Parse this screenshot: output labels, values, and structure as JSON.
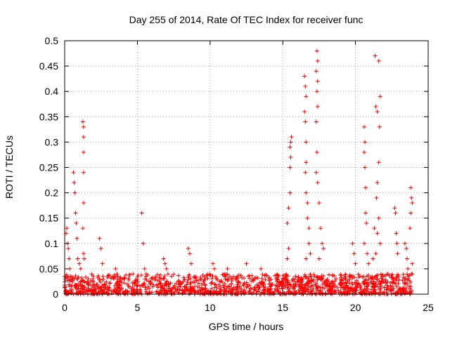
{
  "chart_data": {
    "type": "scatter",
    "title": "Day 255 of 2014, Rate Of TEC Index for receiver func",
    "xlabel": "GPS time / hours",
    "ylabel": "ROTI / TECUs",
    "xlim": [
      0,
      25
    ],
    "ylim": [
      0,
      0.5
    ],
    "xticks": [
      "0",
      "5",
      "10",
      "15",
      "20",
      "25"
    ],
    "yticks": [
      "0",
      "0.05",
      "0.1",
      "0.15",
      "0.2",
      "0.25",
      "0.3",
      "0.35",
      "0.4",
      "0.45",
      "0.5"
    ],
    "grid": true,
    "marker": "plus",
    "series_color": "#ff0000",
    "series": [
      {
        "name": "ROTI",
        "points": [
          [
            0.1,
            0.12
          ],
          [
            0.15,
            0.13
          ],
          [
            0.2,
            0.1
          ],
          [
            0.25,
            0.09
          ],
          [
            0.3,
            0.07
          ],
          [
            0.35,
            0.05
          ],
          [
            0.6,
            0.24
          ],
          [
            0.65,
            0.22
          ],
          [
            0.7,
            0.2
          ],
          [
            0.75,
            0.16
          ],
          [
            0.8,
            0.14
          ],
          [
            0.85,
            0.11
          ],
          [
            0.9,
            0.07
          ],
          [
            1.0,
            0.06
          ],
          [
            1.1,
            0.05
          ],
          [
            1.25,
            0.34
          ],
          [
            1.3,
            0.33
          ],
          [
            1.3,
            0.31
          ],
          [
            1.3,
            0.28
          ],
          [
            1.3,
            0.24
          ],
          [
            1.3,
            0.18
          ],
          [
            1.25,
            0.13
          ],
          [
            1.3,
            0.08
          ],
          [
            1.35,
            0.07
          ],
          [
            2.4,
            0.11
          ],
          [
            2.5,
            0.09
          ],
          [
            2.6,
            0.06
          ],
          [
            3.5,
            0.05
          ],
          [
            3.6,
            0.04
          ],
          [
            4.7,
            0.04
          ],
          [
            5.3,
            0.16
          ],
          [
            5.4,
            0.1
          ],
          [
            5.5,
            0.05
          ],
          [
            5.6,
            0.04
          ],
          [
            6.8,
            0.07
          ],
          [
            6.9,
            0.06
          ],
          [
            7.0,
            0.05
          ],
          [
            8.5,
            0.09
          ],
          [
            8.6,
            0.08
          ],
          [
            8.7,
            0.06
          ],
          [
            10.2,
            0.06
          ],
          [
            10.3,
            0.05
          ],
          [
            11.2,
            0.05
          ],
          [
            12.5,
            0.06
          ],
          [
            13.5,
            0.05
          ],
          [
            15.3,
            0.14
          ],
          [
            15.4,
            0.17
          ],
          [
            15.5,
            0.2
          ],
          [
            15.5,
            0.25
          ],
          [
            15.55,
            0.27
          ],
          [
            15.5,
            0.29
          ],
          [
            15.55,
            0.3
          ],
          [
            15.6,
            0.31
          ],
          [
            15.4,
            0.09
          ],
          [
            15.3,
            0.07
          ],
          [
            16.5,
            0.43
          ],
          [
            16.55,
            0.41
          ],
          [
            16.6,
            0.39
          ],
          [
            16.5,
            0.36
          ],
          [
            16.55,
            0.34
          ],
          [
            16.6,
            0.3
          ],
          [
            16.6,
            0.26
          ],
          [
            16.55,
            0.24
          ],
          [
            16.6,
            0.2
          ],
          [
            16.7,
            0.18
          ],
          [
            16.7,
            0.15
          ],
          [
            16.8,
            0.13
          ],
          [
            16.8,
            0.1
          ],
          [
            16.9,
            0.08
          ],
          [
            16.6,
            0.07
          ],
          [
            17.35,
            0.48
          ],
          [
            17.4,
            0.46
          ],
          [
            17.3,
            0.44
          ],
          [
            17.4,
            0.42
          ],
          [
            17.35,
            0.4
          ],
          [
            17.4,
            0.37
          ],
          [
            17.3,
            0.34
          ],
          [
            17.35,
            0.28
          ],
          [
            17.3,
            0.24
          ],
          [
            17.4,
            0.22
          ],
          [
            17.5,
            0.18
          ],
          [
            17.6,
            0.13
          ],
          [
            17.7,
            0.1
          ],
          [
            17.8,
            0.09
          ],
          [
            17.5,
            0.07
          ],
          [
            19.8,
            0.1
          ],
          [
            19.9,
            0.08
          ],
          [
            20.0,
            0.06
          ],
          [
            20.6,
            0.33
          ],
          [
            20.65,
            0.3
          ],
          [
            20.6,
            0.28
          ],
          [
            20.65,
            0.25
          ],
          [
            20.7,
            0.21
          ],
          [
            20.7,
            0.16
          ],
          [
            20.75,
            0.14
          ],
          [
            20.6,
            0.1
          ],
          [
            20.8,
            0.08
          ],
          [
            20.9,
            0.06
          ],
          [
            21.35,
            0.47
          ],
          [
            21.6,
            0.46
          ],
          [
            21.4,
            0.37
          ],
          [
            21.5,
            0.36
          ],
          [
            21.7,
            0.39
          ],
          [
            21.65,
            0.33
          ],
          [
            21.6,
            0.26
          ],
          [
            21.5,
            0.22
          ],
          [
            21.45,
            0.19
          ],
          [
            21.6,
            0.15
          ],
          [
            21.3,
            0.13
          ],
          [
            21.5,
            0.12
          ],
          [
            21.7,
            0.1
          ],
          [
            21.4,
            0.08
          ],
          [
            21.2,
            0.07
          ],
          [
            22.7,
            0.17
          ],
          [
            22.75,
            0.16
          ],
          [
            22.8,
            0.12
          ],
          [
            22.85,
            0.1
          ],
          [
            22.9,
            0.08
          ],
          [
            23.4,
            0.1
          ],
          [
            23.5,
            0.09
          ],
          [
            23.55,
            0.07
          ],
          [
            23.6,
            0.05
          ],
          [
            23.8,
            0.21
          ],
          [
            23.85,
            0.19
          ],
          [
            23.9,
            0.18
          ],
          [
            23.8,
            0.16
          ],
          [
            23.75,
            0.13
          ],
          [
            23.9,
            0.06
          ],
          [
            23.85,
            0.04
          ]
        ]
      }
    ],
    "baseline_band": {
      "description": "dense cloud of points between x 0 and 23.9 with ROTI roughly 0 to 0.04",
      "x_range": [
        0,
        23.9
      ],
      "y_range": [
        0.0,
        0.04
      ]
    }
  }
}
